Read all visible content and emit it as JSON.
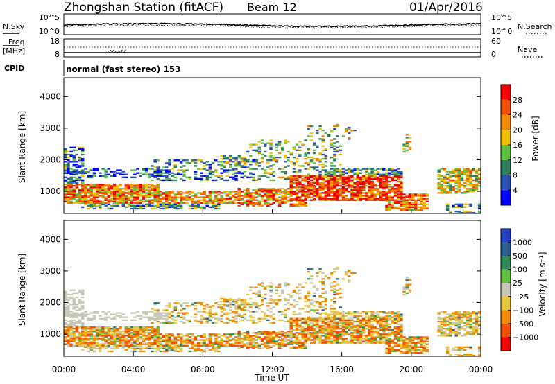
{
  "header": {
    "station": "Zhongshan Station (fitACF)",
    "beam": "Beam 12",
    "date": "01/Apr/2016"
  },
  "sky_panel": {
    "left_label": "N.Sky",
    "left_ticks": [
      "10^5",
      "10^0"
    ],
    "right_label": "N.Search",
    "right_ticks": [
      "10^5",
      "10^0"
    ]
  },
  "freq_panel": {
    "left_label_1": "Freq.",
    "left_label_2": "[MHz]",
    "left_ticks": [
      "18",
      "8"
    ],
    "right_label": "Nave",
    "right_ticks": [
      "60",
      "0"
    ]
  },
  "cpid_panel": {
    "label": "CPID",
    "value": "normal (fast stereo) 153"
  },
  "colors": {
    "power": [
      "#0000ff",
      "#2a52b4",
      "#2f7f5f",
      "#5fbf40",
      "#f0c000",
      "#f08a00",
      "#f05000",
      "#f00000"
    ],
    "velocity": [
      "#2040c0",
      "#2a6090",
      "#2f8a5a",
      "#60c040",
      "#c8c8b8",
      "#e8c840",
      "#f08a00",
      "#f05000",
      "#f00000"
    ]
  },
  "chart_data": [
    {
      "type": "heatmap",
      "name": "power",
      "ylabel": "Slant Range [km]",
      "xlabel": "",
      "yticks": [
        "1000",
        "2000",
        "3000",
        "4000"
      ],
      "ylim": [
        300,
        4600
      ],
      "colorbar_label": "Power [dB]",
      "colorbar_ticks": [
        "4",
        "8",
        "12",
        "16",
        "20",
        "24",
        "28"
      ]
    },
    {
      "type": "heatmap",
      "name": "velocity",
      "ylabel": "Slant Range [km]",
      "xlabel": "Time UT",
      "xticks": [
        "00:00",
        "04:00",
        "08:00",
        "12:00",
        "16:00",
        "20:00",
        "00:00"
      ],
      "yticks": [
        "1000",
        "2000",
        "3000",
        "4000"
      ],
      "ylim": [
        300,
        4600
      ],
      "colorbar_label": "Velocity [m s⁻¹]",
      "colorbar_ticks": [
        "1000",
        "500",
        "100",
        "25",
        "−25",
        "−100",
        "−500",
        "−1000"
      ]
    }
  ]
}
